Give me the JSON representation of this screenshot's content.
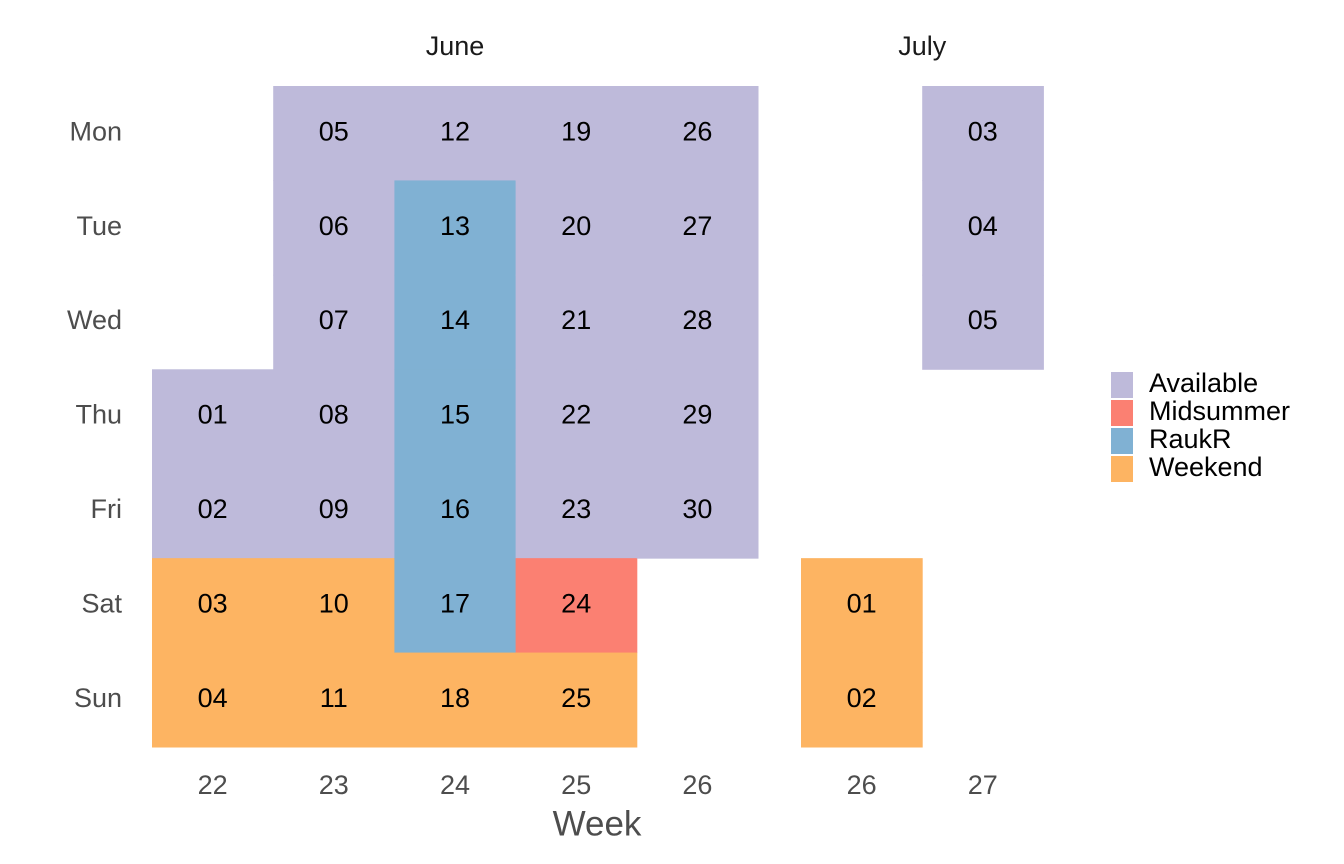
{
  "chart_data": {
    "type": "calendar",
    "x_label": "Week",
    "days": [
      "Mon",
      "Tue",
      "Wed",
      "Thu",
      "Fri",
      "Sat",
      "Sun"
    ],
    "legend": [
      {
        "name": "Available",
        "color": "#bebada"
      },
      {
        "name": "Midsummer",
        "color": "#fb8072"
      },
      {
        "name": "RaukR",
        "color": "#80b1d3"
      },
      {
        "name": "Weekend",
        "color": "#fdb462"
      }
    ],
    "panels": [
      {
        "title": "June",
        "weeks": [
          "22",
          "23",
          "24",
          "25",
          "26"
        ],
        "cells": [
          {
            "week": "22",
            "day": "Thu",
            "date": "01",
            "status": "Available"
          },
          {
            "week": "22",
            "day": "Fri",
            "date": "02",
            "status": "Available"
          },
          {
            "week": "22",
            "day": "Sat",
            "date": "03",
            "status": "Weekend"
          },
          {
            "week": "22",
            "day": "Sun",
            "date": "04",
            "status": "Weekend"
          },
          {
            "week": "23",
            "day": "Mon",
            "date": "05",
            "status": "Available"
          },
          {
            "week": "23",
            "day": "Tue",
            "date": "06",
            "status": "Available"
          },
          {
            "week": "23",
            "day": "Wed",
            "date": "07",
            "status": "Available"
          },
          {
            "week": "23",
            "day": "Thu",
            "date": "08",
            "status": "Available"
          },
          {
            "week": "23",
            "day": "Fri",
            "date": "09",
            "status": "Available"
          },
          {
            "week": "23",
            "day": "Sat",
            "date": "10",
            "status": "Weekend"
          },
          {
            "week": "23",
            "day": "Sun",
            "date": "11",
            "status": "Weekend"
          },
          {
            "week": "24",
            "day": "Mon",
            "date": "12",
            "status": "Available"
          },
          {
            "week": "24",
            "day": "Tue",
            "date": "13",
            "status": "RaukR"
          },
          {
            "week": "24",
            "day": "Wed",
            "date": "14",
            "status": "RaukR"
          },
          {
            "week": "24",
            "day": "Thu",
            "date": "15",
            "status": "RaukR"
          },
          {
            "week": "24",
            "day": "Fri",
            "date": "16",
            "status": "RaukR"
          },
          {
            "week": "24",
            "day": "Sat",
            "date": "17",
            "status": "RaukR"
          },
          {
            "week": "24",
            "day": "Sun",
            "date": "18",
            "status": "Weekend"
          },
          {
            "week": "25",
            "day": "Mon",
            "date": "19",
            "status": "Available"
          },
          {
            "week": "25",
            "day": "Tue",
            "date": "20",
            "status": "Available"
          },
          {
            "week": "25",
            "day": "Wed",
            "date": "21",
            "status": "Available"
          },
          {
            "week": "25",
            "day": "Thu",
            "date": "22",
            "status": "Available"
          },
          {
            "week": "25",
            "day": "Fri",
            "date": "23",
            "status": "Available"
          },
          {
            "week": "25",
            "day": "Sat",
            "date": "24",
            "status": "Midsummer"
          },
          {
            "week": "25",
            "day": "Sun",
            "date": "25",
            "status": "Weekend"
          },
          {
            "week": "26",
            "day": "Mon",
            "date": "26",
            "status": "Available"
          },
          {
            "week": "26",
            "day": "Tue",
            "date": "27",
            "status": "Available"
          },
          {
            "week": "26",
            "day": "Wed",
            "date": "28",
            "status": "Available"
          },
          {
            "week": "26",
            "day": "Thu",
            "date": "29",
            "status": "Available"
          },
          {
            "week": "26",
            "day": "Fri",
            "date": "30",
            "status": "Available"
          }
        ]
      },
      {
        "title": "July",
        "weeks": [
          "26",
          "27"
        ],
        "cells": [
          {
            "week": "26",
            "day": "Sat",
            "date": "01",
            "status": "Weekend"
          },
          {
            "week": "26",
            "day": "Sun",
            "date": "02",
            "status": "Weekend"
          },
          {
            "week": "27",
            "day": "Mon",
            "date": "03",
            "status": "Available"
          },
          {
            "week": "27",
            "day": "Tue",
            "date": "04",
            "status": "Available"
          },
          {
            "week": "27",
            "day": "Wed",
            "date": "05",
            "status": "Available"
          }
        ]
      }
    ]
  }
}
